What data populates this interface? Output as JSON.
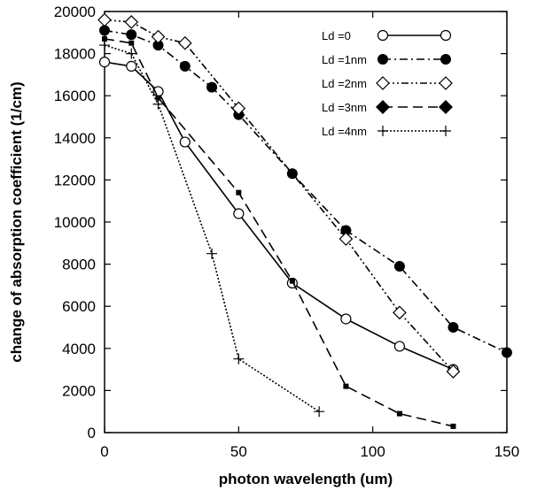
{
  "chart_data": {
    "type": "line",
    "title": "",
    "xlabel": "photon wavelength (um)",
    "ylabel": "change of absorption coefficient (1/cm)",
    "xlim": [
      0,
      150
    ],
    "ylim": [
      0,
      20000
    ],
    "x_ticks": [
      0,
      50,
      100,
      150
    ],
    "y_ticks": [
      0,
      2000,
      4000,
      6000,
      8000,
      10000,
      12000,
      14000,
      16000,
      18000,
      20000
    ],
    "grid": false,
    "legend_position": "top-right",
    "series": [
      {
        "name": "Ld =0",
        "marker": "open-circle",
        "line": "solid",
        "x": [
          0,
          10,
          20,
          30,
          50,
          70,
          90,
          110,
          130
        ],
        "y": [
          17600,
          17400,
          16200,
          13800,
          10400,
          7100,
          5400,
          4100,
          3000
        ]
      },
      {
        "name": "Ld =1nm",
        "marker": "filled-circle",
        "line": "dash-dot",
        "x": [
          0,
          10,
          20,
          30,
          40,
          50,
          70,
          90,
          110,
          130,
          150
        ],
        "y": [
          19100,
          18900,
          18400,
          17400,
          16400,
          15100,
          12300,
          9600,
          7900,
          5000,
          3800
        ]
      },
      {
        "name": "Ld =2nm",
        "marker": "open-diamond",
        "line": "dash-dot-dot",
        "x": [
          0,
          10,
          20,
          30,
          50,
          90,
          110,
          130
        ],
        "y": [
          19600,
          19500,
          18800,
          18500,
          15400,
          9200,
          5700,
          2900
        ]
      },
      {
        "name": "Ld =3nm",
        "marker": "filled-diamond",
        "line": "dashed",
        "x": [
          0,
          10,
          20,
          50,
          70,
          90,
          110,
          130
        ],
        "y": [
          18700,
          18500,
          15900,
          11400,
          7200,
          2200,
          900,
          300
        ]
      },
      {
        "name": "Ld =4nm",
        "marker": "plus",
        "line": "dotted",
        "x": [
          0,
          10,
          20,
          40,
          50,
          80
        ],
        "y": [
          18400,
          18000,
          15600,
          8500,
          3500,
          1000
        ]
      }
    ]
  }
}
